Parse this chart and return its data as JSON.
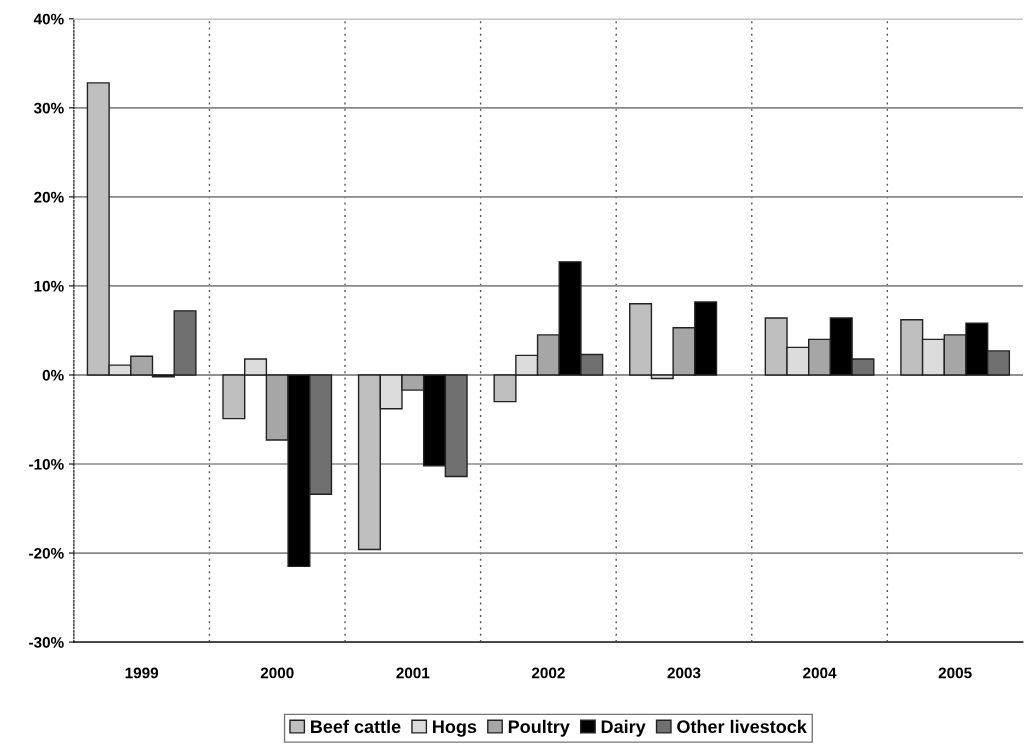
{
  "chart_data": {
    "type": "bar",
    "categories": [
      "1999",
      "2000",
      "2001",
      "2002",
      "2003",
      "2004",
      "2005"
    ],
    "series": [
      {
        "name": "Beef cattle",
        "color": "#bfbfbf",
        "values": [
          32.8,
          -4.9,
          -19.6,
          -3.0,
          8.0,
          6.4,
          6.2
        ]
      },
      {
        "name": "Hogs",
        "color": "#dcdcdc",
        "values": [
          1.1,
          1.8,
          -3.8,
          2.2,
          -0.4,
          3.1,
          4.0
        ]
      },
      {
        "name": "Poultry",
        "color": "#a6a6a6",
        "values": [
          2.1,
          -7.3,
          -1.7,
          4.5,
          5.3,
          4.0,
          4.5
        ]
      },
      {
        "name": "Dairy",
        "color": "#000000",
        "values": [
          -0.2,
          -21.5,
          -10.2,
          12.7,
          8.2,
          6.4,
          5.8
        ]
      },
      {
        "name": "Other livestock",
        "color": "#707070",
        "values": [
          7.2,
          -13.4,
          -11.4,
          2.3,
          null,
          1.8,
          2.7
        ]
      }
    ],
    "ylim": [
      -30,
      40
    ],
    "yticks": [
      {
        "value": -30,
        "label": "-30%"
      },
      {
        "value": -20,
        "label": "-20%"
      },
      {
        "value": -10,
        "label": "-10%"
      },
      {
        "value": 0,
        "label": "0%"
      },
      {
        "value": 10,
        "label": "10%"
      },
      {
        "value": 20,
        "label": "20%"
      },
      {
        "value": 30,
        "label": "30%"
      },
      {
        "value": 40,
        "label": "40%"
      }
    ],
    "grid": true,
    "legend": "bottom"
  }
}
